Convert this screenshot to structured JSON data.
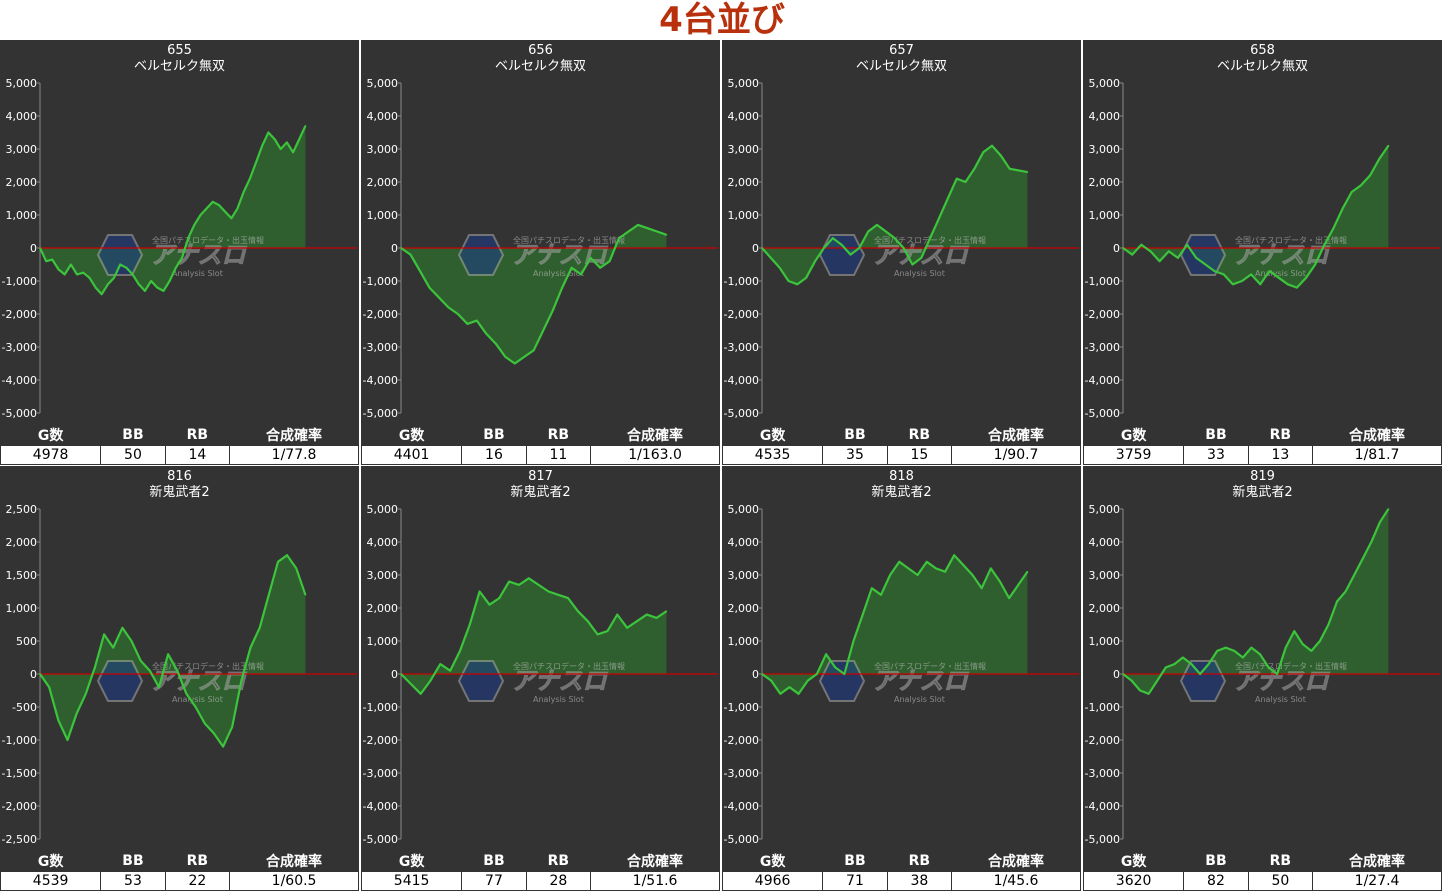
{
  "page_title": "4台並び",
  "stats_headers": [
    "G数",
    "BB",
    "RB",
    "合成確率"
  ],
  "colors": {
    "line": "#3cc43c",
    "fill": "#2f6e2f",
    "zero": "#cc0000",
    "bg": "#333333",
    "title": "#b8300c"
  },
  "watermark": {
    "small": "全国パチスロデータ・出玉情報",
    "main": "アナスロ",
    "sub": "Analysis Slot"
  },
  "chart_data": [
    {
      "type": "area",
      "machine_no": "655",
      "model": "ベルセルク無双",
      "yticks": [
        "5,000",
        "4,000",
        "3,000",
        "2,000",
        "1,000",
        "0",
        "-1,000",
        "-2,000",
        "-3,000",
        "-4,000",
        "-5,000"
      ],
      "ylim": [
        -5000,
        5000
      ],
      "values": [
        0,
        -400,
        -350,
        -650,
        -800,
        -500,
        -800,
        -750,
        -900,
        -1200,
        -1400,
        -1100,
        -900,
        -500,
        -600,
        -800,
        -1100,
        -1300,
        -1000,
        -1200,
        -1300,
        -1000,
        -600,
        -300,
        300,
        700,
        1000,
        1200,
        1400,
        1300,
        1100,
        900,
        1200,
        1700,
        2100,
        2600,
        3100,
        3500,
        3300,
        3000,
        3200,
        2900,
        3300,
        3700
      ],
      "stats": {
        "games": "4978",
        "bb": "50",
        "rb": "14",
        "rate": "1/77.8"
      }
    },
    {
      "type": "area",
      "machine_no": "656",
      "model": "ベルセルク無双",
      "yticks": [
        "5,000",
        "4,000",
        "3,000",
        "2,000",
        "1,000",
        "0",
        "-1,000",
        "-2,000",
        "-3,000",
        "-4,000",
        "-5,000"
      ],
      "ylim": [
        -5000,
        5000
      ],
      "values": [
        0,
        -200,
        -700,
        -1200,
        -1500,
        -1800,
        -2000,
        -2300,
        -2200,
        -2600,
        -2900,
        -3300,
        -3500,
        -3300,
        -3100,
        -2500,
        -1900,
        -1200,
        -600,
        -800,
        -300,
        -600,
        -400,
        300,
        500,
        700,
        600,
        500,
        400
      ],
      "stats": {
        "games": "4401",
        "bb": "16",
        "rb": "11",
        "rate": "1/163.0"
      }
    },
    {
      "type": "area",
      "machine_no": "657",
      "model": "ベルセルク無双",
      "yticks": [
        "5,000",
        "4,000",
        "3,000",
        "2,000",
        "1,000",
        "0",
        "-1,000",
        "-2,000",
        "-3,000",
        "-4,000",
        "-5,000"
      ],
      "ylim": [
        -5000,
        5000
      ],
      "values": [
        0,
        -300,
        -600,
        -1000,
        -1100,
        -900,
        -400,
        0,
        300,
        100,
        -200,
        0,
        500,
        700,
        500,
        300,
        0,
        -500,
        -300,
        300,
        900,
        1500,
        2100,
        2000,
        2400,
        2900,
        3100,
        2800,
        2400,
        2350,
        2300
      ],
      "stats": {
        "games": "4535",
        "bb": "35",
        "rb": "15",
        "rate": "1/90.7"
      }
    },
    {
      "type": "area",
      "machine_no": "658",
      "model": "ベルセルク無双",
      "yticks": [
        "5,000",
        "4,000",
        "3,000",
        "2,000",
        "1,000",
        "0",
        "-1,000",
        "-2,000",
        "-3,000",
        "-4,000",
        "-5,000"
      ],
      "ylim": [
        -5000,
        5000
      ],
      "values": [
        0,
        -200,
        100,
        -100,
        -400,
        -100,
        -300,
        100,
        -300,
        -500,
        -700,
        -800,
        -1100,
        -1000,
        -800,
        -1100,
        -700,
        -900,
        -1100,
        -1200,
        -900,
        -500,
        100,
        600,
        1200,
        1700,
        1900,
        2200,
        2700,
        3100
      ],
      "stats": {
        "games": "3759",
        "bb": "33",
        "rb": "13",
        "rate": "1/81.7"
      }
    },
    {
      "type": "area",
      "machine_no": "816",
      "model": "新鬼武者2",
      "yticks": [
        "2,500",
        "2,000",
        "1,500",
        "1,000",
        "500",
        "0",
        "-500",
        "-1,000",
        "-1,500",
        "-2,000",
        "-2,500"
      ],
      "ylim": [
        -2500,
        2500
      ],
      "values": [
        0,
        -200,
        -700,
        -1000,
        -600,
        -300,
        100,
        600,
        400,
        700,
        500,
        200,
        50,
        -200,
        300,
        50,
        -300,
        -500,
        -750,
        -900,
        -1100,
        -800,
        -100,
        400,
        700,
        1200,
        1700,
        1800,
        1600,
        1200
      ],
      "stats": {
        "games": "4539",
        "bb": "53",
        "rb": "22",
        "rate": "1/60.5"
      }
    },
    {
      "type": "area",
      "machine_no": "817",
      "model": "新鬼武者2",
      "yticks": [
        "5,000",
        "4,000",
        "3,000",
        "2,000",
        "1,000",
        "0",
        "-1,000",
        "-2,000",
        "-3,000",
        "-4,000",
        "-5,000"
      ],
      "ylim": [
        -5000,
        5000
      ],
      "values": [
        0,
        -300,
        -600,
        -200,
        300,
        100,
        700,
        1500,
        2500,
        2100,
        2300,
        2800,
        2700,
        2900,
        2700,
        2500,
        2400,
        2300,
        1900,
        1600,
        1200,
        1300,
        1800,
        1400,
        1600,
        1800,
        1700,
        1900
      ],
      "stats": {
        "games": "5415",
        "bb": "77",
        "rb": "28",
        "rate": "1/51.6"
      }
    },
    {
      "type": "area",
      "machine_no": "818",
      "model": "新鬼武者2",
      "yticks": [
        "5,000",
        "4,000",
        "3,000",
        "2,000",
        "1,000",
        "0",
        "-1,000",
        "-2,000",
        "-3,000",
        "-4,000",
        "-5,000"
      ],
      "ylim": [
        -5000,
        5000
      ],
      "values": [
        0,
        -200,
        -600,
        -400,
        -600,
        -200,
        0,
        600,
        200,
        0,
        1000,
        1800,
        2600,
        2400,
        3000,
        3400,
        3200,
        3000,
        3400,
        3200,
        3100,
        3600,
        3300,
        3000,
        2600,
        3200,
        2800,
        2300,
        2700,
        3100
      ],
      "stats": {
        "games": "4966",
        "bb": "71",
        "rb": "38",
        "rate": "1/45.6"
      }
    },
    {
      "type": "area",
      "machine_no": "819",
      "model": "新鬼武者2",
      "yticks": [
        "5,000",
        "4,000",
        "3,000",
        "2,000",
        "1,000",
        "0",
        "-1,000",
        "-2,000",
        "-3,000",
        "-4,000",
        "-5,000"
      ],
      "ylim": [
        -5000,
        5000
      ],
      "values": [
        0,
        -200,
        -500,
        -600,
        -200,
        200,
        300,
        500,
        300,
        0,
        300,
        700,
        800,
        700,
        500,
        800,
        600,
        200,
        0,
        800,
        1300,
        900,
        700,
        1000,
        1500,
        2200,
        2500,
        3000,
        3500,
        4000,
        4600,
        5000
      ],
      "stats": {
        "games": "3620",
        "bb": "82",
        "rb": "50",
        "rate": "1/27.4"
      }
    }
  ]
}
